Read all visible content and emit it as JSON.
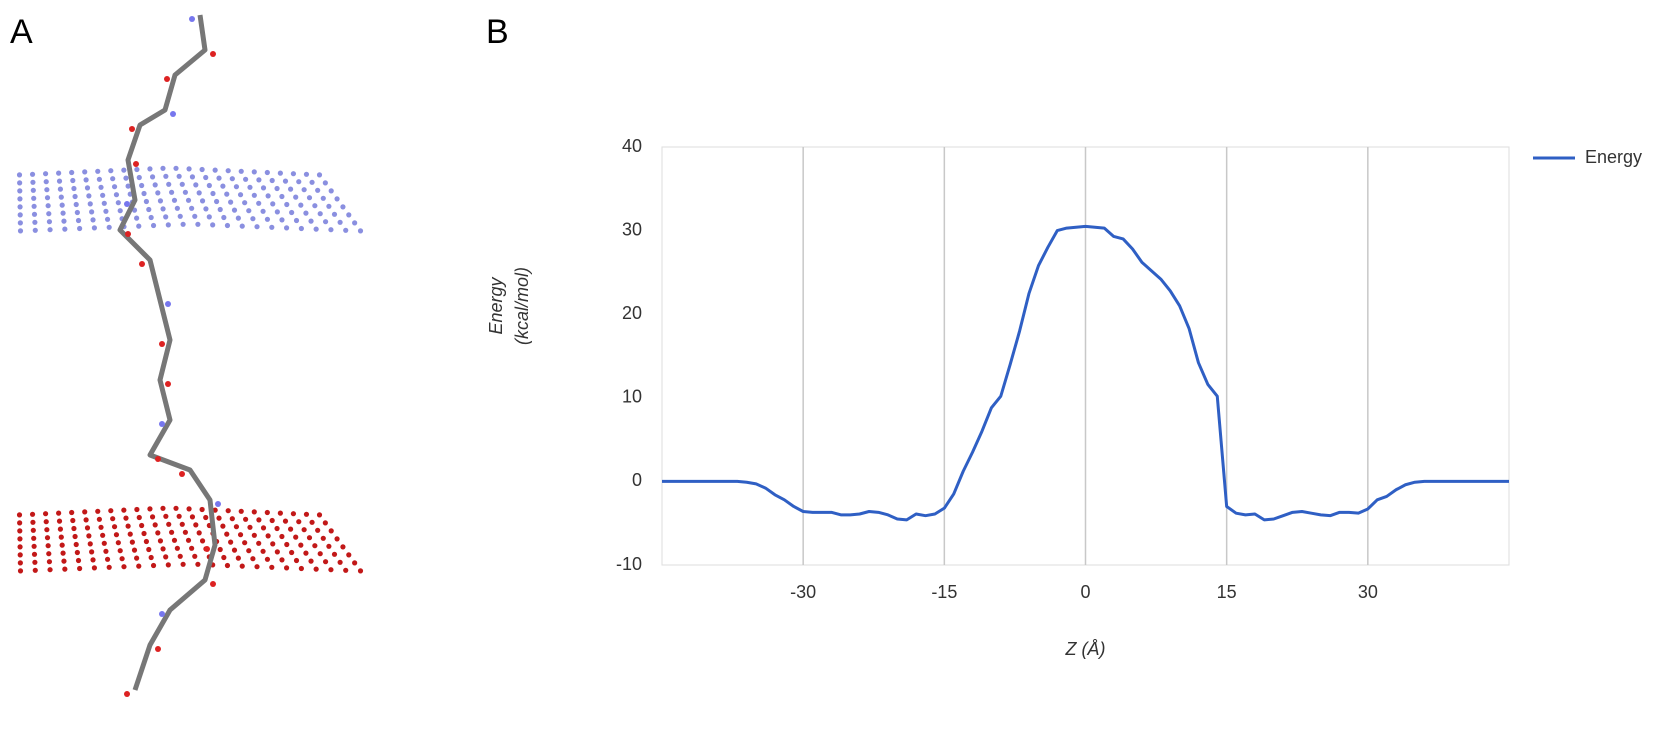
{
  "panel_labels": [
    "A",
    "B"
  ],
  "chart_data": {
    "type": "line",
    "x_label": "Z (Å)",
    "y_label": [
      "Energy",
      "(kcal/mol)"
    ],
    "x": [
      -45,
      -44,
      -43,
      -42,
      -41,
      -40,
      -39,
      -38,
      -37,
      -36,
      -35,
      -34,
      -33,
      -32,
      -31,
      -30,
      -29,
      -28,
      -27,
      -26,
      -25,
      -24,
      -23,
      -22,
      -21,
      -20,
      -19,
      -18,
      -17,
      -16,
      -15,
      -14,
      -13,
      -12,
      -11,
      -10,
      -9,
      -8,
      -7,
      -6,
      -5,
      -4,
      -3,
      -2,
      -1,
      0,
      1,
      2,
      3,
      4,
      5,
      6,
      7,
      8,
      9,
      10,
      11,
      12,
      13,
      14,
      15,
      16,
      17,
      18,
      19,
      20,
      21,
      22,
      23,
      24,
      25,
      26,
      27,
      28,
      29,
      30,
      31,
      32,
      33,
      34,
      35,
      36,
      37,
      38,
      39,
      40,
      41,
      42,
      43,
      44,
      45
    ],
    "series": [
      {
        "name": "Energy",
        "color": "#2f5fc4",
        "values": [
          0,
          0,
          0,
          0,
          0,
          0,
          0,
          0,
          0,
          -0.1,
          -0.3,
          -0.8,
          -1.6,
          -2.2,
          -3.0,
          -3.6,
          -3.7,
          -3.7,
          -3.7,
          -4.0,
          -4.0,
          -3.9,
          -3.6,
          -3.7,
          -4.0,
          -4.5,
          -4.6,
          -3.9,
          -4.1,
          -3.9,
          -3.2,
          -1.5,
          1.2,
          3.5,
          6.0,
          8.8,
          10.2,
          14,
          18,
          22.5,
          25.8,
          28,
          30,
          30.3,
          30.4,
          30.5,
          30.4,
          30.3,
          29.3,
          29,
          27.8,
          26.2,
          25.2,
          24.2,
          22.8,
          21,
          18.3,
          14.2,
          11.6,
          10.2,
          -3.0,
          -3.8,
          -4.0,
          -3.9,
          -4.6,
          -4.5,
          -4.1,
          -3.7,
          -3.6,
          -3.8,
          -4.0,
          -4.1,
          -3.7,
          -3.7,
          -3.8,
          -3.3,
          -2.2,
          -1.8,
          -1.0,
          -0.4,
          -0.1,
          0,
          0,
          0,
          0,
          0,
          0,
          0,
          0,
          0,
          0
        ]
      }
    ],
    "xlim": [
      -45,
      45
    ],
    "xticks": [
      -30,
      -15,
      0,
      15,
      30
    ],
    "ylim": [
      -10,
      40
    ],
    "yticks": [
      -10,
      0,
      10,
      20,
      30,
      40
    ],
    "grid": "x",
    "legend": "right"
  }
}
